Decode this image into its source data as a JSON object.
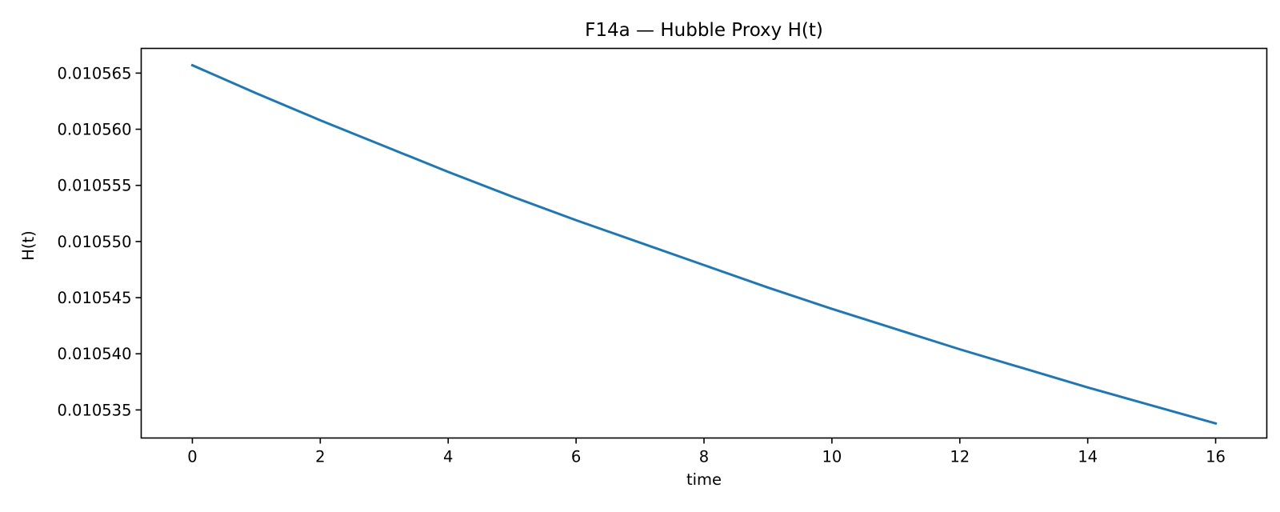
{
  "chart_data": {
    "type": "line",
    "title": "F14a — Hubble Proxy H(t)",
    "xlabel": "time",
    "ylabel": "H(t)",
    "xlim": [
      -0.8,
      16.8
    ],
    "ylim": [
      0.0105325,
      0.0105672
    ],
    "xticks": [
      0,
      2,
      4,
      6,
      8,
      10,
      12,
      14,
      16
    ],
    "xtick_labels": [
      "0",
      "2",
      "4",
      "6",
      "8",
      "10",
      "12",
      "14",
      "16"
    ],
    "yticks": [
      0.010535,
      0.01054,
      0.010545,
      0.01055,
      0.010555,
      0.01056,
      0.010565
    ],
    "ytick_labels": [
      "0.010535",
      "0.010540",
      "0.010545",
      "0.010550",
      "0.010555",
      "0.010560",
      "0.010565"
    ],
    "grid": false,
    "series": [
      {
        "color": "#1f77b4",
        "x": [
          0,
          1,
          2,
          3,
          4,
          5,
          6,
          7,
          8,
          9,
          10,
          11,
          12,
          13,
          14,
          15,
          16
        ],
        "values": [
          0.0105657,
          0.0105632,
          0.0105608,
          0.0105585,
          0.0105562,
          0.010554,
          0.0105519,
          0.0105499,
          0.0105479,
          0.0105459,
          0.010544,
          0.0105422,
          0.0105404,
          0.0105387,
          0.010537,
          0.0105354,
          0.0105338
        ]
      }
    ]
  }
}
